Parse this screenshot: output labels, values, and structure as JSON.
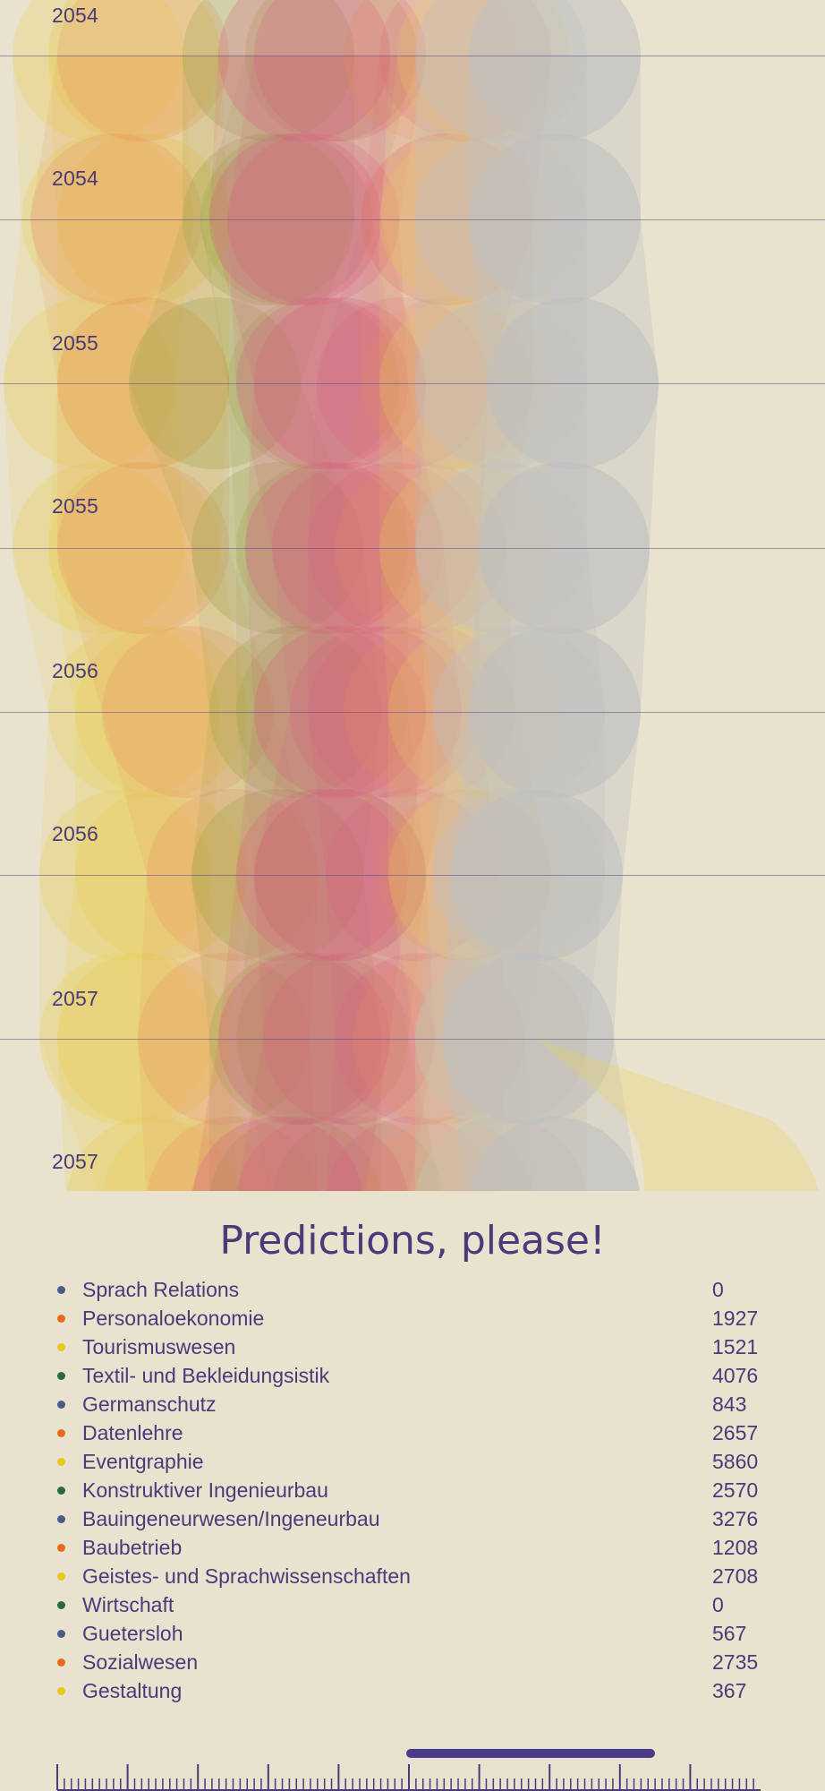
{
  "years": [
    "2054",
    "2054",
    "2055",
    "2055",
    "2056",
    "2056",
    "2057",
    "2057"
  ],
  "predictions": {
    "title": "Predictions, please!",
    "items": [
      {
        "name": "Sprach Relations",
        "value": "0",
        "color": "#4a5a8a"
      },
      {
        "name": "Personaloekonomie",
        "value": "1927",
        "color": "#e86a1a"
      },
      {
        "name": "Tourismuswesen",
        "value": "1521",
        "color": "#e8c81a"
      },
      {
        "name": "Textil- und Bekleidungsistik",
        "value": "4076",
        "color": "#2a6a3a"
      },
      {
        "name": "Germanschutz",
        "value": "843",
        "color": "#4a5a8a"
      },
      {
        "name": "Datenlehre",
        "value": "2657",
        "color": "#e86a1a"
      },
      {
        "name": "Eventgraphie",
        "value": "5860",
        "color": "#e8c81a"
      },
      {
        "name": "Konstruktiver Ingenieurbau",
        "value": "2570",
        "color": "#2a6a3a"
      },
      {
        "name": "Bauingeneurwesen/Ingeneurbau",
        "value": "3276",
        "color": "#4a5a8a"
      },
      {
        "name": "Baubetrieb",
        "value": "1208",
        "color": "#e86a1a"
      },
      {
        "name": "Geistes- und Sprachwissenschaften",
        "value": "2708",
        "color": "#e8c81a"
      },
      {
        "name": "Wirtschaft",
        "value": "0",
        "color": "#2a6a3a"
      },
      {
        "name": "Guetersloh",
        "value": "567",
        "color": "#4a5a8a"
      },
      {
        "name": "Sozialwesen",
        "value": "2735",
        "color": "#e86a1a"
      },
      {
        "name": "Gestaltung",
        "value": "367",
        "color": "#e8c81a"
      }
    ]
  },
  "colors": {
    "background": "#e8e2cf",
    "accent": "#4a3a7a",
    "grey_stream": "#bfbfbf",
    "yellow_stream": "#e8cf5a",
    "pink_stream": "#d9577e",
    "olive_stream": "#9aa04a",
    "orange_stream": "#e88a5a"
  }
}
